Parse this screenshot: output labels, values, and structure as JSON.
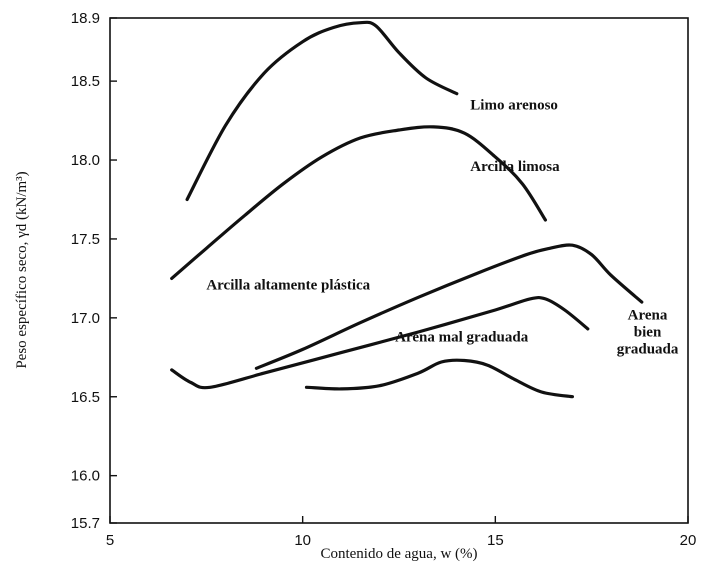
{
  "chart_data": {
    "type": "line",
    "xlabel": "Contenido de agua, w (%)",
    "ylabel": "Peso específico seco, γd (kN/m³)",
    "xlim": [
      5,
      20
    ],
    "ylim": [
      15.7,
      18.9
    ],
    "xticks": [
      "5",
      "10",
      "15",
      "20"
    ],
    "yticks": [
      "15.7",
      "16.0",
      "16.5",
      "17.0",
      "17.5",
      "18.0",
      "18.5",
      "18.9"
    ],
    "grid": false,
    "legend": "none",
    "series": [
      {
        "name": "Limo arenoso",
        "label_lines": [
          "Limo arenoso"
        ],
        "x": [
          7.0,
          8.0,
          9.0,
          10.0,
          10.8,
          11.5,
          11.9,
          12.5,
          13.2,
          14.0
        ],
        "y": [
          17.75,
          18.22,
          18.55,
          18.75,
          18.84,
          18.87,
          18.85,
          18.68,
          18.52,
          18.42
        ]
      },
      {
        "name": "Arcilla limosa",
        "label_lines": [
          "Arcilla limosa"
        ],
        "x": [
          6.6,
          7.5,
          8.5,
          9.5,
          10.5,
          11.5,
          12.5,
          13.4,
          14.2,
          15.0,
          15.7,
          16.3
        ],
        "y": [
          17.25,
          17.44,
          17.65,
          17.85,
          18.02,
          18.14,
          18.19,
          18.21,
          18.17,
          18.02,
          17.85,
          17.62
        ]
      },
      {
        "name": "Arcilla altamente plástica",
        "label_lines": [
          "Arcilla altamente plástica"
        ],
        "x": [
          8.8,
          10.0,
          11.5,
          13.0,
          14.5,
          15.8,
          16.4,
          17.0,
          17.5,
          18.0,
          18.8
        ],
        "y": [
          16.68,
          16.8,
          16.97,
          17.13,
          17.28,
          17.4,
          17.44,
          17.46,
          17.4,
          17.27,
          17.1
        ]
      },
      {
        "name": "Arena bien graduada",
        "label_lines": [
          "Arena",
          "bien",
          "graduada"
        ],
        "x": [
          6.6,
          7.1,
          7.6,
          9.0,
          11.0,
          13.0,
          15.0,
          15.9,
          16.3,
          16.8,
          17.4
        ],
        "y": [
          16.67,
          16.59,
          16.56,
          16.65,
          16.78,
          16.91,
          17.05,
          17.12,
          17.12,
          17.05,
          16.93
        ]
      },
      {
        "name": "Arena mal graduada",
        "label_lines": [
          "Arena mal graduada"
        ],
        "x": [
          10.1,
          11.0,
          12.0,
          13.0,
          13.6,
          14.2,
          14.8,
          15.5,
          16.2,
          17.0
        ],
        "y": [
          16.56,
          16.55,
          16.57,
          16.65,
          16.72,
          16.73,
          16.7,
          16.61,
          16.53,
          16.5
        ]
      }
    ]
  }
}
